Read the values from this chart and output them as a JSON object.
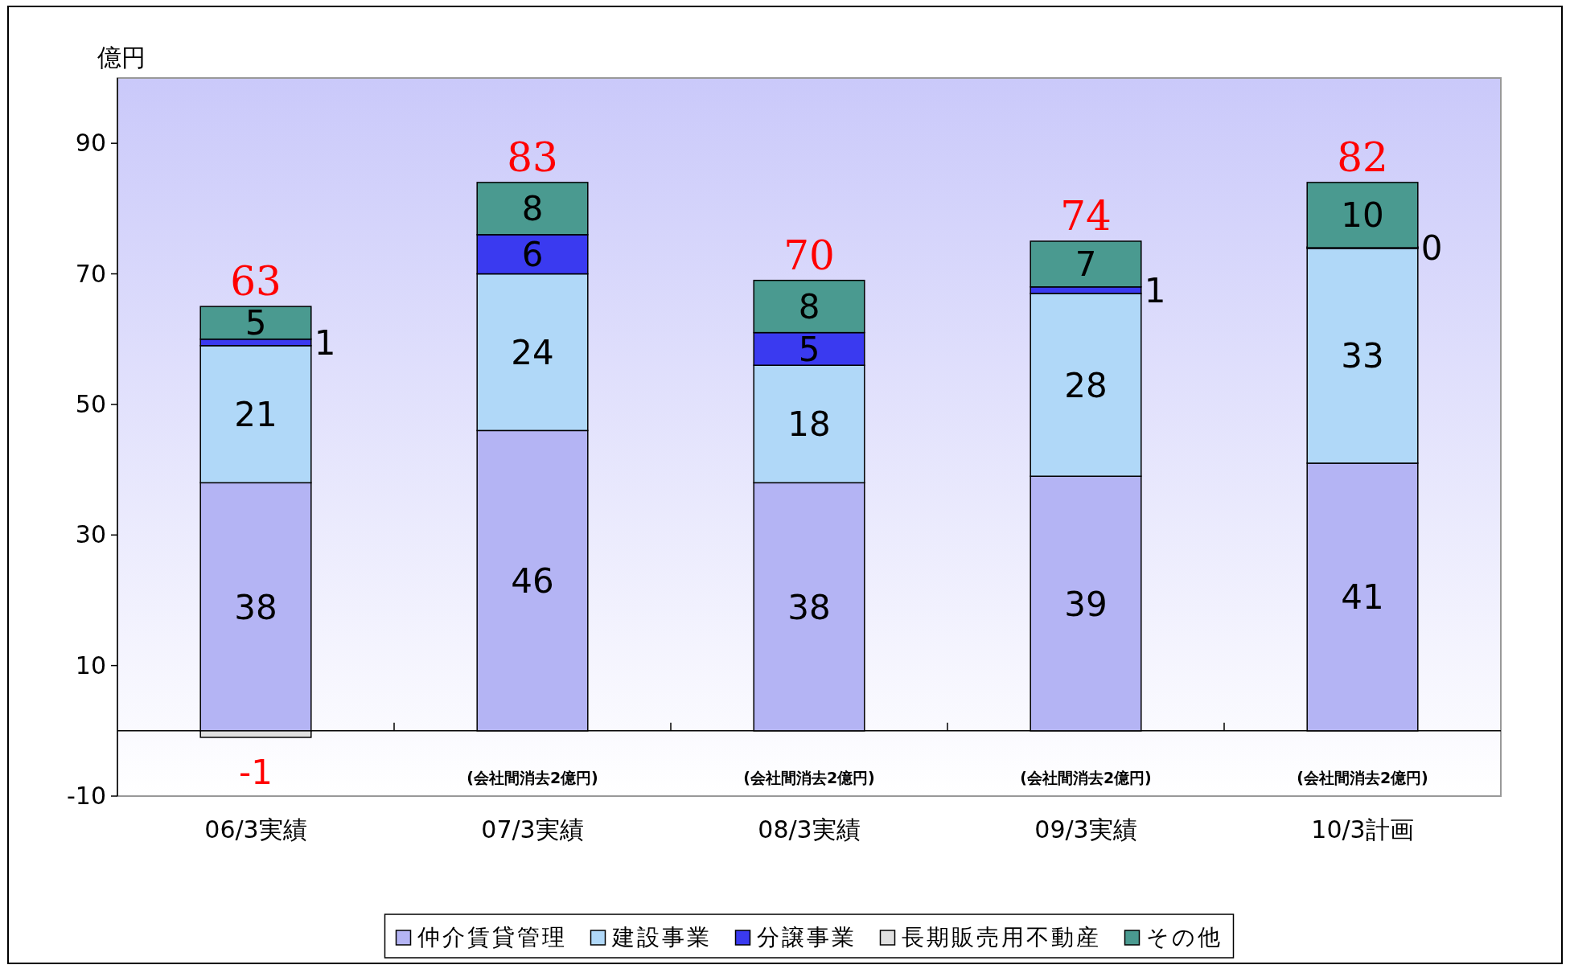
{
  "chart_data": {
    "type": "bar",
    "stacked": true,
    "ylabel": "億円",
    "categories": [
      "06/3実績",
      "07/3実績",
      "08/3実績",
      "09/3実績",
      "10/3計画"
    ],
    "series": [
      {
        "name": "仲介賃貸管理",
        "color": "#b4b4f4",
        "values": [
          38,
          46,
          38,
          39,
          41
        ]
      },
      {
        "name": "建設事業",
        "color": "#b0d8f8",
        "values": [
          21,
          24,
          18,
          28,
          33
        ]
      },
      {
        "name": "分譲事業",
        "color": "#3a3af0",
        "values": [
          1,
          6,
          5,
          1,
          0
        ]
      },
      {
        "name": "長期販売用不動産",
        "color": "#e0e0e0",
        "values": [
          -1,
          null,
          null,
          null,
          null
        ]
      },
      {
        "name": "その他",
        "color": "#4a9a90",
        "values": [
          5,
          8,
          8,
          7,
          10
        ]
      }
    ],
    "totals": [
      "63",
      "83",
      "70",
      "74",
      "82"
    ],
    "data_labels": true,
    "ylim": [
      -10,
      100
    ],
    "yticks": [
      -10,
      10,
      30,
      50,
      70,
      90
    ],
    "legend": "bottom",
    "annotations": [
      "(会社間消去2億円)",
      "(会社間消去2億円)",
      "(会社間消去2億円)",
      "(会社間消去2億円)"
    ]
  }
}
